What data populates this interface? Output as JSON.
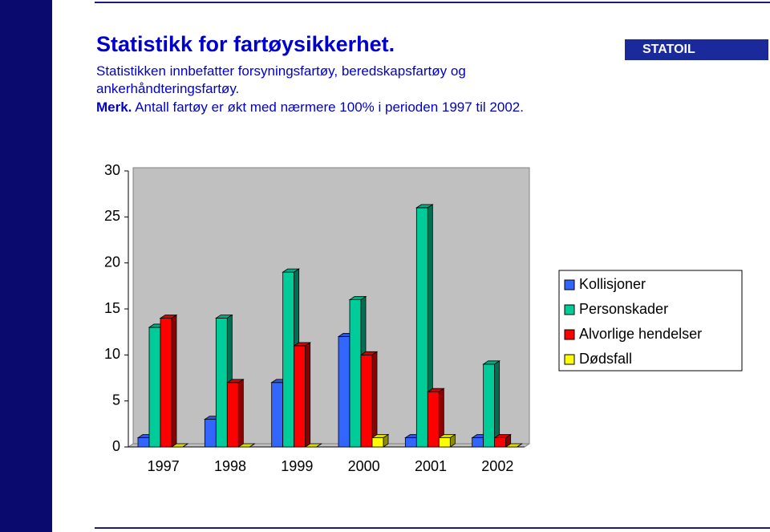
{
  "slide": {
    "title": "Statistikk for fartøysikkerhet.",
    "subtitle": "Statistikken innbefatter forsyningsfartøy, beredskapsfartøy og ankerhåndteringsfartøy.",
    "note_label": "Merk.",
    "note": "Antall fartøy er økt med nærmere 100% i perioden 1997 til 2002.",
    "logo": "STATOIL"
  },
  "chart_data": {
    "type": "bar3d",
    "categories": [
      "1997",
      "1998",
      "1999",
      "2000",
      "2001",
      "2002"
    ],
    "series": [
      {
        "name": "Kollisjoner",
        "color": "#3366ff",
        "values": [
          1,
          3,
          7,
          12,
          1,
          1
        ]
      },
      {
        "name": "Personskader",
        "color": "#00cc99",
        "values": [
          13,
          14,
          19,
          16,
          26,
          9
        ]
      },
      {
        "name": "Alvorlige hendelser",
        "color": "#ff0000",
        "values": [
          14,
          7,
          11,
          10,
          6,
          1
        ]
      },
      {
        "name": "Dødsfall",
        "color": "#ffff00",
        "values": [
          0,
          0,
          0,
          1,
          1,
          0
        ]
      }
    ],
    "ylim": [
      0,
      30
    ],
    "yticks": [
      0,
      5,
      10,
      15,
      20,
      25,
      30
    ],
    "legend": "right"
  }
}
